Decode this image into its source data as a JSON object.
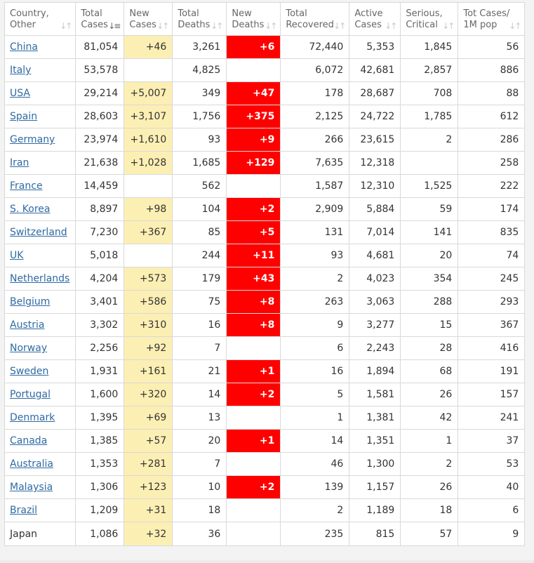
{
  "table": {
    "columns": [
      {
        "label": "Country,\nOther",
        "sort_icon": "sort-icon"
      },
      {
        "label": "Total\nCases",
        "sort_icon": "sort-desc-icon"
      },
      {
        "label": "New\nCases",
        "sort_icon": "sort-icon"
      },
      {
        "label": "Total\nDeaths",
        "sort_icon": "sort-icon"
      },
      {
        "label": "New\nDeaths",
        "sort_icon": "sort-icon"
      },
      {
        "label": "Total\nRecovered",
        "sort_icon": "sort-icon"
      },
      {
        "label": "Active\nCases",
        "sort_icon": "sort-icon"
      },
      {
        "label": "Serious,\nCritical",
        "sort_icon": "sort-icon"
      },
      {
        "label": "Tot Cases/\n1M pop",
        "sort_icon": "sort-icon"
      }
    ],
    "colors": {
      "new_cases_highlight": "#fcefb4",
      "new_deaths_highlight": "#ff0000",
      "link": "#2f6aa3"
    },
    "rows": [
      {
        "country": "China",
        "link": true,
        "total_cases": "81,054",
        "new_cases": "+46",
        "total_deaths": "3,261",
        "new_deaths": "+6",
        "total_recovered": "72,440",
        "active_cases": "5,353",
        "serious_critical": "1,845",
        "tot_cases_1m": "56"
      },
      {
        "country": "Italy",
        "link": true,
        "total_cases": "53,578",
        "new_cases": "",
        "total_deaths": "4,825",
        "new_deaths": "",
        "total_recovered": "6,072",
        "active_cases": "42,681",
        "serious_critical": "2,857",
        "tot_cases_1m": "886"
      },
      {
        "country": "USA",
        "link": true,
        "total_cases": "29,214",
        "new_cases": "+5,007",
        "total_deaths": "349",
        "new_deaths": "+47",
        "total_recovered": "178",
        "active_cases": "28,687",
        "serious_critical": "708",
        "tot_cases_1m": "88"
      },
      {
        "country": "Spain",
        "link": true,
        "total_cases": "28,603",
        "new_cases": "+3,107",
        "total_deaths": "1,756",
        "new_deaths": "+375",
        "total_recovered": "2,125",
        "active_cases": "24,722",
        "serious_critical": "1,785",
        "tot_cases_1m": "612"
      },
      {
        "country": "Germany",
        "link": true,
        "total_cases": "23,974",
        "new_cases": "+1,610",
        "total_deaths": "93",
        "new_deaths": "+9",
        "total_recovered": "266",
        "active_cases": "23,615",
        "serious_critical": "2",
        "tot_cases_1m": "286"
      },
      {
        "country": "Iran",
        "link": true,
        "total_cases": "21,638",
        "new_cases": "+1,028",
        "total_deaths": "1,685",
        "new_deaths": "+129",
        "total_recovered": "7,635",
        "active_cases": "12,318",
        "serious_critical": "",
        "tot_cases_1m": "258"
      },
      {
        "country": "France",
        "link": true,
        "total_cases": "14,459",
        "new_cases": "",
        "total_deaths": "562",
        "new_deaths": "",
        "total_recovered": "1,587",
        "active_cases": "12,310",
        "serious_critical": "1,525",
        "tot_cases_1m": "222"
      },
      {
        "country": "S. Korea",
        "link": true,
        "total_cases": "8,897",
        "new_cases": "+98",
        "total_deaths": "104",
        "new_deaths": "+2",
        "total_recovered": "2,909",
        "active_cases": "5,884",
        "serious_critical": "59",
        "tot_cases_1m": "174"
      },
      {
        "country": "Switzerland",
        "link": true,
        "total_cases": "7,230",
        "new_cases": "+367",
        "total_deaths": "85",
        "new_deaths": "+5",
        "total_recovered": "131",
        "active_cases": "7,014",
        "serious_critical": "141",
        "tot_cases_1m": "835"
      },
      {
        "country": "UK",
        "link": true,
        "total_cases": "5,018",
        "new_cases": "",
        "total_deaths": "244",
        "new_deaths": "+11",
        "total_recovered": "93",
        "active_cases": "4,681",
        "serious_critical": "20",
        "tot_cases_1m": "74"
      },
      {
        "country": "Netherlands",
        "link": true,
        "total_cases": "4,204",
        "new_cases": "+573",
        "total_deaths": "179",
        "new_deaths": "+43",
        "total_recovered": "2",
        "active_cases": "4,023",
        "serious_critical": "354",
        "tot_cases_1m": "245"
      },
      {
        "country": "Belgium",
        "link": true,
        "total_cases": "3,401",
        "new_cases": "+586",
        "total_deaths": "75",
        "new_deaths": "+8",
        "total_recovered": "263",
        "active_cases": "3,063",
        "serious_critical": "288",
        "tot_cases_1m": "293"
      },
      {
        "country": "Austria",
        "link": true,
        "total_cases": "3,302",
        "new_cases": "+310",
        "total_deaths": "16",
        "new_deaths": "+8",
        "total_recovered": "9",
        "active_cases": "3,277",
        "serious_critical": "15",
        "tot_cases_1m": "367"
      },
      {
        "country": "Norway",
        "link": true,
        "total_cases": "2,256",
        "new_cases": "+92",
        "total_deaths": "7",
        "new_deaths": "",
        "total_recovered": "6",
        "active_cases": "2,243",
        "serious_critical": "28",
        "tot_cases_1m": "416"
      },
      {
        "country": "Sweden",
        "link": true,
        "total_cases": "1,931",
        "new_cases": "+161",
        "total_deaths": "21",
        "new_deaths": "+1",
        "total_recovered": "16",
        "active_cases": "1,894",
        "serious_critical": "68",
        "tot_cases_1m": "191"
      },
      {
        "country": "Portugal",
        "link": true,
        "total_cases": "1,600",
        "new_cases": "+320",
        "total_deaths": "14",
        "new_deaths": "+2",
        "total_recovered": "5",
        "active_cases": "1,581",
        "serious_critical": "26",
        "tot_cases_1m": "157"
      },
      {
        "country": "Denmark",
        "link": true,
        "total_cases": "1,395",
        "new_cases": "+69",
        "total_deaths": "13",
        "new_deaths": "",
        "total_recovered": "1",
        "active_cases": "1,381",
        "serious_critical": "42",
        "tot_cases_1m": "241"
      },
      {
        "country": "Canada",
        "link": true,
        "total_cases": "1,385",
        "new_cases": "+57",
        "total_deaths": "20",
        "new_deaths": "+1",
        "total_recovered": "14",
        "active_cases": "1,351",
        "serious_critical": "1",
        "tot_cases_1m": "37"
      },
      {
        "country": "Australia",
        "link": true,
        "total_cases": "1,353",
        "new_cases": "+281",
        "total_deaths": "7",
        "new_deaths": "",
        "total_recovered": "46",
        "active_cases": "1,300",
        "serious_critical": "2",
        "tot_cases_1m": "53"
      },
      {
        "country": "Malaysia",
        "link": true,
        "total_cases": "1,306",
        "new_cases": "+123",
        "total_deaths": "10",
        "new_deaths": "+2",
        "total_recovered": "139",
        "active_cases": "1,157",
        "serious_critical": "26",
        "tot_cases_1m": "40"
      },
      {
        "country": "Brazil",
        "link": true,
        "total_cases": "1,209",
        "new_cases": "+31",
        "total_deaths": "18",
        "new_deaths": "",
        "total_recovered": "2",
        "active_cases": "1,189",
        "serious_critical": "18",
        "tot_cases_1m": "6"
      },
      {
        "country": "Japan",
        "link": false,
        "total_cases": "1,086",
        "new_cases": "+32",
        "total_deaths": "36",
        "new_deaths": "",
        "total_recovered": "235",
        "active_cases": "815",
        "serious_critical": "57",
        "tot_cases_1m": "9"
      }
    ]
  }
}
